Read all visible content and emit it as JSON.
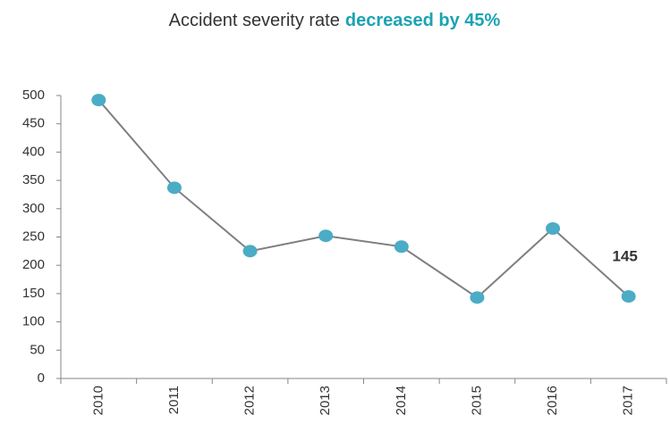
{
  "chart_data": {
    "type": "line",
    "title": "Accident severity rate",
    "title_highlight": "decreased by 45%",
    "categories": [
      "2010",
      "2011",
      "2012",
      "2013",
      "2014",
      "2015",
      "2016",
      "2017"
    ],
    "values": [
      492,
      337,
      225,
      252,
      233,
      143,
      265,
      145
    ],
    "line_color": "#7f7f7f",
    "marker_color": "#4bacc6",
    "highlight_color": "#1ba3b3",
    "ylim": [
      0,
      500
    ],
    "yticks": [
      0,
      50,
      100,
      150,
      200,
      250,
      300,
      350,
      400,
      450,
      500
    ],
    "grid": false
  }
}
